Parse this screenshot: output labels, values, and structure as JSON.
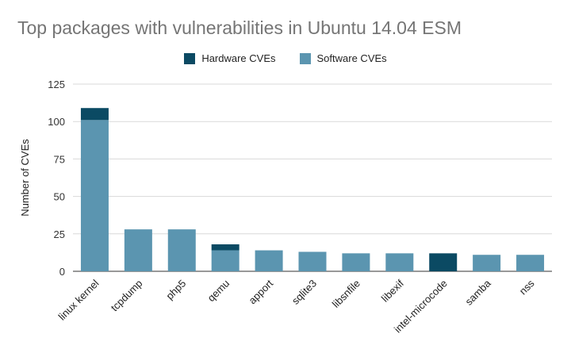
{
  "chart_data": {
    "type": "bar",
    "stacked": true,
    "title": "Top packages with vulnerabilities in Ubuntu 14.04 ESM",
    "ylabel": "Number of CVEs",
    "xlabel": "",
    "ylim": [
      0,
      125
    ],
    "yticks": [
      0,
      25,
      50,
      75,
      100,
      125
    ],
    "grid": true,
    "legend_position": "top",
    "categories": [
      "linux kernel",
      "tcpdump",
      "php5",
      "qemu",
      "apport",
      "sqlite3",
      "libsnfile",
      "libexif",
      "intel-microcode",
      "samba",
      "nss"
    ],
    "series": [
      {
        "name": "Hardware CVEs",
        "color": "#0b4a63",
        "values": [
          8,
          0,
          0,
          4,
          0,
          0,
          0,
          0,
          12,
          0,
          0
        ]
      },
      {
        "name": "Software CVEs",
        "color": "#5b95b0",
        "values": [
          101,
          28,
          28,
          14,
          14,
          13,
          12,
          12,
          0,
          11,
          11
        ]
      }
    ]
  }
}
